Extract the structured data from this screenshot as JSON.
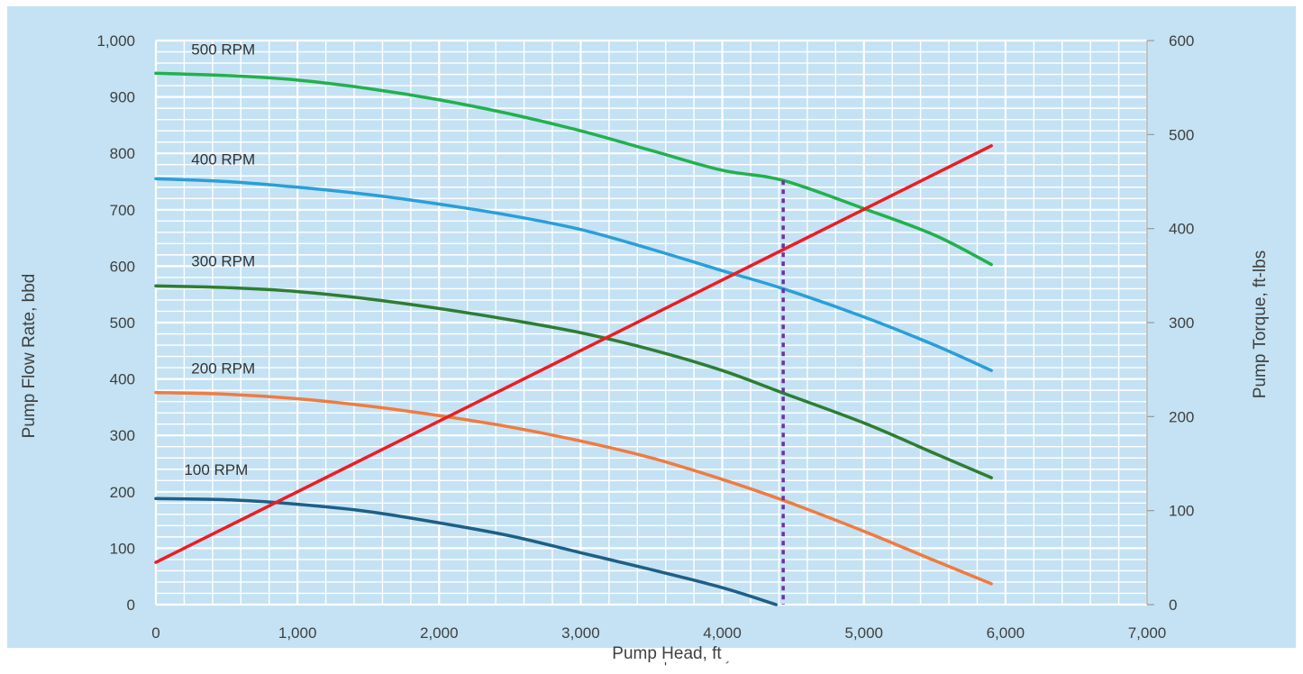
{
  "chart_data": {
    "type": "line",
    "xlabel": "Pump Head, ft",
    "ylabel": "Pump Flow Rate, bbd",
    "y2label": "Pump Torque, ft-lbs",
    "xlim": [
      0,
      7000
    ],
    "ylim": [
      0,
      1000
    ],
    "y2lim": [
      0,
      600
    ],
    "x_ticks": [
      "0",
      "1,000",
      "2,000",
      "3,000",
      "4,000",
      "5,000",
      "6,000",
      "7,000"
    ],
    "y_ticks": [
      "0",
      "100",
      "200",
      "300",
      "400",
      "500",
      "600",
      "700",
      "800",
      "900",
      "1,000"
    ],
    "y2_ticks": [
      "0",
      "100",
      "200",
      "300",
      "400",
      "500",
      "600"
    ],
    "grid": true,
    "background_color": "#c4e2f3",
    "series": [
      {
        "name": "500 RPM",
        "axis": "left",
        "color": "#22b14c",
        "x": [
          0,
          500,
          1000,
          1500,
          2000,
          2500,
          3000,
          3500,
          4000,
          4430,
          5000,
          5500,
          5900
        ],
        "y": [
          942,
          938,
          930,
          915,
          895,
          870,
          840,
          805,
          770,
          752,
          702,
          655,
          603
        ]
      },
      {
        "name": "400 RPM",
        "axis": "left",
        "color": "#2a9fd8",
        "x": [
          0,
          500,
          1000,
          1500,
          2000,
          2500,
          3000,
          3500,
          4000,
          4430,
          5000,
          5500,
          5900
        ],
        "y": [
          755,
          750,
          740,
          727,
          710,
          690,
          665,
          630,
          592,
          560,
          510,
          460,
          415
        ]
      },
      {
        "name": "300 RPM",
        "axis": "left",
        "color": "#2e7d32",
        "x": [
          0,
          500,
          1000,
          1500,
          2000,
          2500,
          3000,
          3500,
          4000,
          4430,
          5000,
          5500,
          5900
        ],
        "y": [
          565,
          562,
          555,
          542,
          525,
          505,
          482,
          452,
          415,
          375,
          322,
          268,
          225
        ]
      },
      {
        "name": "200 RPM",
        "axis": "left",
        "color": "#f07b3f",
        "x": [
          0,
          500,
          1000,
          1500,
          2000,
          2500,
          3000,
          3500,
          4000,
          4430,
          5000,
          5500,
          5900
        ],
        "y": [
          376,
          373,
          365,
          352,
          335,
          315,
          290,
          260,
          222,
          185,
          130,
          78,
          37
        ]
      },
      {
        "name": "100 RPM",
        "axis": "left",
        "color": "#1f5f86",
        "x": [
          0,
          500,
          1000,
          1500,
          2000,
          2500,
          3000,
          3500,
          4000,
          4380
        ],
        "y": [
          188,
          186,
          178,
          165,
          145,
          122,
          92,
          62,
          30,
          0
        ]
      },
      {
        "name": "",
        "axis": "right",
        "color": "#ed1c24",
        "x": [
          0,
          5900
        ],
        "y": [
          45,
          488
        ]
      }
    ],
    "vertical_marker": {
      "x": 4430,
      "y_top": 752,
      "color": "#7030a0",
      "style": "dotted"
    },
    "curve_label_positions": [
      {
        "series": "500 RPM",
        "x": 250,
        "y": 975
      },
      {
        "series": "400 RPM",
        "x": 250,
        "y": 780
      },
      {
        "series": "300 RPM",
        "x": 250,
        "y": 600
      },
      {
        "series": "200 RPM",
        "x": 250,
        "y": 410
      },
      {
        "series": "100 RPM",
        "x": 200,
        "y": 230
      }
    ],
    "stray_marks": [
      "'",
      "´"
    ]
  }
}
